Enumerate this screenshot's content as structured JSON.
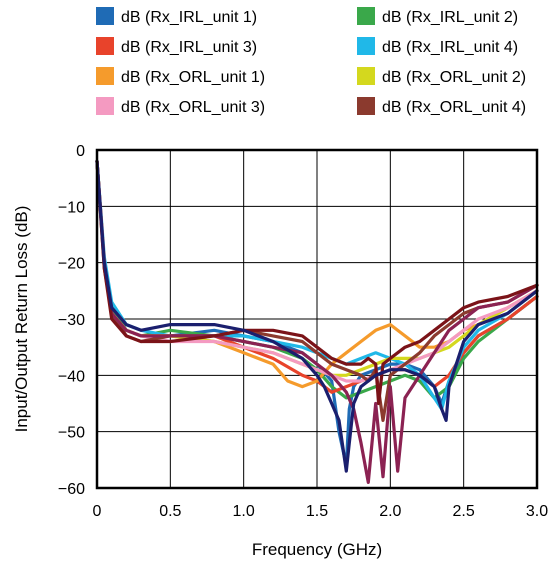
{
  "chart_data": {
    "type": "line",
    "title": "",
    "xlabel": "Frequency (GHz)",
    "ylabel": "Input/Output Return Loss (dB)",
    "xlim": [
      0,
      3.0
    ],
    "ylim": [
      -60,
      0
    ],
    "grid": true,
    "legend_position": "top",
    "x_ticks": [
      0,
      0.5,
      1.0,
      1.5,
      2.0,
      2.5,
      3.0
    ],
    "x_tick_labels": [
      "0",
      "0.5",
      "1.0",
      "1.5",
      "2.0",
      "2.5",
      "3.0"
    ],
    "y_ticks": [
      0,
      -10,
      -20,
      -30,
      -40,
      -50,
      -60
    ],
    "y_tick_labels": [
      "0",
      "−10",
      "−20",
      "−30",
      "−40",
      "−50",
      "−60"
    ],
    "series": [
      {
        "name": "dB (Rx_IRL_unit 1)",
        "color": "#1f6bb5",
        "x": [
          0,
          0.05,
          0.1,
          0.2,
          0.3,
          0.5,
          0.8,
          1.0,
          1.2,
          1.4,
          1.5,
          1.6,
          1.65,
          1.7,
          1.72,
          1.75,
          1.8,
          1.9,
          2.0,
          2.1,
          2.2,
          2.3,
          2.35,
          2.4,
          2.5,
          2.6,
          2.8,
          3.0
        ],
        "y": [
          -2,
          -20,
          -29,
          -32,
          -33,
          -33,
          -32,
          -33,
          -34,
          -36,
          -38,
          -41,
          -50,
          -56,
          -46,
          -42,
          -40,
          -39,
          -38,
          -38,
          -39,
          -42,
          -45,
          -41,
          -36,
          -33,
          -30,
          -26
        ]
      },
      {
        "name": "dB (Rx_IRL_unit 2)",
        "color": "#3aa84a",
        "x": [
          0,
          0.05,
          0.1,
          0.2,
          0.3,
          0.5,
          0.8,
          1.0,
          1.2,
          1.4,
          1.5,
          1.6,
          1.7,
          1.8,
          1.9,
          2.0,
          2.1,
          2.2,
          2.3,
          2.4,
          2.5,
          2.6,
          2.8,
          3.0
        ],
        "y": [
          -2,
          -20,
          -28,
          -32,
          -33,
          -32,
          -33,
          -34,
          -35,
          -37,
          -39,
          -42,
          -44,
          -43,
          -42,
          -41,
          -40,
          -41,
          -44,
          -42,
          -37,
          -34,
          -30,
          -26
        ]
      },
      {
        "name": "dB (Rx_IRL_unit 3)",
        "color": "#e8432b",
        "x": [
          0,
          0.05,
          0.1,
          0.2,
          0.3,
          0.5,
          0.8,
          1.0,
          1.2,
          1.4,
          1.5,
          1.6,
          1.7,
          1.8,
          1.9,
          2.0,
          2.1,
          2.2,
          2.3,
          2.4,
          2.5,
          2.6,
          2.8,
          3.0
        ],
        "y": [
          -2,
          -20,
          -29,
          -32,
          -33,
          -33,
          -33,
          -35,
          -37,
          -40,
          -41,
          -43,
          -42,
          -41,
          -40,
          -39,
          -39,
          -40,
          -42,
          -40,
          -36,
          -33,
          -30,
          -26
        ]
      },
      {
        "name": "dB (Rx_IRL_unit 4)",
        "color": "#20b8e8",
        "x": [
          0,
          0.05,
          0.1,
          0.2,
          0.3,
          0.5,
          0.8,
          1.0,
          1.2,
          1.4,
          1.5,
          1.6,
          1.7,
          1.8,
          1.9,
          2.0,
          2.1,
          2.2,
          2.3,
          2.35,
          2.4,
          2.5,
          2.6,
          2.8,
          3.0
        ],
        "y": [
          -2,
          -19,
          -27,
          -31,
          -32,
          -33,
          -33,
          -33,
          -34,
          -35,
          -36,
          -37,
          -38,
          -37,
          -36,
          -37,
          -38,
          -40,
          -44,
          -46,
          -41,
          -35,
          -32,
          -29,
          -25
        ]
      },
      {
        "name": "dB (Rx_ORL_unit 1)",
        "color": "#f59b2c",
        "x": [
          0,
          0.05,
          0.1,
          0.2,
          0.3,
          0.5,
          0.8,
          1.0,
          1.2,
          1.3,
          1.4,
          1.5,
          1.6,
          1.7,
          1.8,
          1.9,
          2.0,
          2.1,
          2.2,
          2.3,
          2.4,
          2.5,
          2.6,
          2.8,
          3.0
        ],
        "y": [
          -2,
          -20,
          -29,
          -32,
          -33,
          -33,
          -34,
          -36,
          -38,
          -41,
          -42,
          -41,
          -38,
          -36,
          -34,
          -32,
          -31,
          -33,
          -35,
          -35,
          -34,
          -32,
          -31,
          -28,
          -25
        ]
      },
      {
        "name": "dB (Rx_ORL_unit 2)",
        "color": "#d4d81e",
        "x": [
          0,
          0.05,
          0.1,
          0.2,
          0.3,
          0.5,
          0.8,
          1.0,
          1.2,
          1.4,
          1.5,
          1.6,
          1.7,
          1.8,
          1.9,
          2.0,
          2.1,
          2.2,
          2.3,
          2.4,
          2.5,
          2.6,
          2.8,
          3.0
        ],
        "y": [
          -2,
          -20,
          -29,
          -32,
          -33,
          -33,
          -34,
          -35,
          -36,
          -38,
          -39,
          -40,
          -40,
          -39,
          -38,
          -37,
          -37,
          -37,
          -36,
          -35,
          -33,
          -31,
          -28,
          -25
        ]
      },
      {
        "name": "dB (Rx_ORL_unit 3)",
        "color": "#f49ac1",
        "x": [
          0,
          0.05,
          0.1,
          0.2,
          0.3,
          0.5,
          0.8,
          1.0,
          1.2,
          1.4,
          1.5,
          1.6,
          1.7,
          1.8,
          1.9,
          2.0,
          2.1,
          2.2,
          2.3,
          2.4,
          2.5,
          2.6,
          2.8,
          3.0
        ],
        "y": [
          -2,
          -20,
          -29,
          -32,
          -33,
          -34,
          -34,
          -35,
          -36,
          -38,
          -39,
          -40,
          -41,
          -41,
          -40,
          -39,
          -38,
          -37,
          -36,
          -34,
          -32,
          -30,
          -28,
          -25
        ]
      },
      {
        "name": "dB (Rx_ORL_unit 4)",
        "color": "#8b3a2e",
        "x": [
          0,
          0.05,
          0.1,
          0.2,
          0.3,
          0.5,
          0.8,
          1.0,
          1.2,
          1.4,
          1.5,
          1.6,
          1.7,
          1.8,
          1.85,
          1.9,
          1.95,
          2.0,
          2.1,
          2.2,
          2.3,
          2.4,
          2.5,
          2.6,
          2.8,
          3.0
        ],
        "y": [
          -2,
          -21,
          -29,
          -33,
          -34,
          -33,
          -33,
          -32,
          -33,
          -34,
          -36,
          -38,
          -39,
          -40,
          -41,
          -39,
          -48,
          -40,
          -38,
          -36,
          -33,
          -31,
          -29,
          -28,
          -27,
          -24
        ]
      },
      {
        "name": "",
        "color": "#8b2252",
        "x": [
          0,
          0.05,
          0.1,
          0.2,
          0.3,
          0.5,
          0.8,
          1.0,
          1.2,
          1.4,
          1.5,
          1.6,
          1.7,
          1.75,
          1.8,
          1.85,
          1.9,
          1.95,
          2.0,
          2.05,
          2.1,
          2.2,
          2.3,
          2.4,
          2.5,
          2.6,
          2.8,
          3.0
        ],
        "y": [
          -2,
          -20,
          -29,
          -32,
          -33,
          -33,
          -33,
          -34,
          -35,
          -36,
          -38,
          -40,
          -43,
          -46,
          -52,
          -59,
          -45,
          -58,
          -42,
          -57,
          -44,
          -40,
          -36,
          -32,
          -30,
          -28,
          -27,
          -24
        ]
      },
      {
        "name": "",
        "color": "#7b1318",
        "x": [
          0,
          0.05,
          0.1,
          0.2,
          0.3,
          0.5,
          0.8,
          1.0,
          1.2,
          1.4,
          1.5,
          1.6,
          1.7,
          1.8,
          1.85,
          1.9,
          1.92,
          1.95,
          2.0,
          2.1,
          2.2,
          2.3,
          2.4,
          2.5,
          2.6,
          2.8,
          3.0
        ],
        "y": [
          -2,
          -21,
          -30,
          -33,
          -34,
          -34,
          -33,
          -32,
          -32,
          -33,
          -35,
          -37,
          -38,
          -38,
          -37,
          -38,
          -45,
          -38,
          -37,
          -35,
          -34,
          -32,
          -30,
          -28,
          -27,
          -26,
          -24
        ]
      },
      {
        "name": "",
        "color": "#1b1f6e",
        "x": [
          0,
          0.05,
          0.1,
          0.2,
          0.3,
          0.5,
          0.8,
          1.0,
          1.2,
          1.4,
          1.5,
          1.55,
          1.6,
          1.65,
          1.7,
          1.72,
          1.75,
          1.8,
          1.9,
          2.0,
          2.1,
          2.2,
          2.3,
          2.35,
          2.38,
          2.4,
          2.45,
          2.5,
          2.6,
          2.8,
          3.0
        ],
        "y": [
          -2,
          -20,
          -28,
          -31,
          -32,
          -31,
          -31,
          -32,
          -34,
          -37,
          -40,
          -42,
          -45,
          -48,
          -57,
          -52,
          -45,
          -42,
          -40,
          -39,
          -39,
          -40,
          -42,
          -46,
          -48,
          -42,
          -38,
          -34,
          -31,
          -29,
          -25
        ]
      }
    ]
  }
}
